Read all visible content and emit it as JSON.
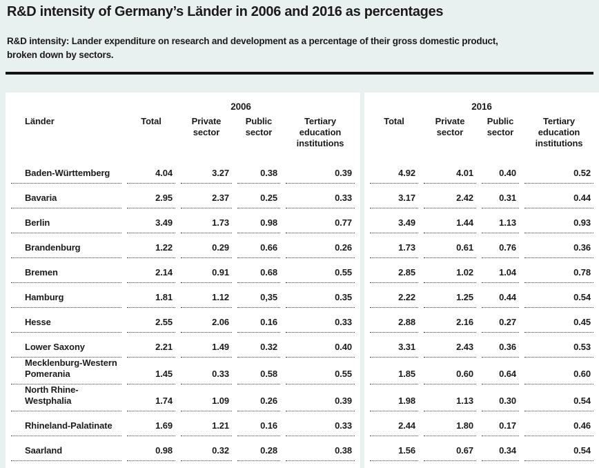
{
  "page": {
    "title": "R&D intensity of Germany’s Länder in 2006 and 2016 as percentages",
    "subtitle_lines": [
      "R&D intensity: Lander expenditure on research and development as a percentage of their gross domestic product,",
      "broken down by sectors."
    ],
    "colors": {
      "background": "#e9f1f0",
      "panel": "#ffffff",
      "text": "#1b1b1a",
      "rule": "#141414",
      "dotted_separator": "#3d3d3d"
    }
  },
  "table": {
    "row_header_label": "Länder",
    "year_groups": [
      {
        "year": "2006",
        "columns": [
          "Total",
          "Private sector",
          "Public sector",
          "Tertiary education institutions"
        ]
      },
      {
        "year": "2016",
        "columns": [
          "Total",
          "Private sector",
          "Public sector",
          "Tertiary education institutions"
        ]
      }
    ],
    "rows": [
      {
        "name": "Baden-Württemberg",
        "v06": [
          "4.04",
          "3.27",
          "0.38",
          "0.39"
        ],
        "v16": [
          "4.92",
          "4.01",
          "0.40",
          "0.52"
        ]
      },
      {
        "name": "Bavaria",
        "v06": [
          "2.95",
          "2.37",
          "0.25",
          "0.33"
        ],
        "v16": [
          "3.17",
          "2.42",
          "0.31",
          "0.44"
        ]
      },
      {
        "name": "Berlin",
        "v06": [
          "3.49",
          "1.73",
          "0.98",
          "0.77"
        ],
        "v16": [
          "3.49",
          "1.44",
          "1.13",
          "0.93"
        ]
      },
      {
        "name": "Brandenburg",
        "v06": [
          "1.22",
          "0.29",
          "0.66",
          "0.26"
        ],
        "v16": [
          "1.73",
          "0.61",
          "0.76",
          "0.36"
        ]
      },
      {
        "name": "Bremen",
        "v06": [
          "2.14",
          "0.91",
          "0.68",
          "0.55"
        ],
        "v16": [
          "2.85",
          "1.02",
          "1.04",
          "0.78"
        ]
      },
      {
        "name": "Hamburg",
        "v06": [
          "1.81",
          "1.12",
          "0,35",
          "0.35"
        ],
        "v16": [
          "2.22",
          "1.25",
          "0.44",
          "0.54"
        ]
      },
      {
        "name": "Hesse",
        "v06": [
          "2.55",
          "2.06",
          "0.16",
          "0.33"
        ],
        "v16": [
          "2.88",
          "2.16",
          "0.27",
          "0.45"
        ]
      },
      {
        "name": "Lower Saxony",
        "v06": [
          "2.21",
          "1.49",
          "0.32",
          "0.40"
        ],
        "v16": [
          "3.31",
          "2.43",
          "0.36",
          "0.53"
        ]
      },
      {
        "name": "Mecklenburg-Western Pomerania",
        "v06": [
          "1.45",
          "0.33",
          "0.58",
          "0.55"
        ],
        "v16": [
          "1.85",
          "0.60",
          "0.64",
          "0.60"
        ]
      },
      {
        "name": "North Rhine-Westphalia",
        "v06": [
          "1.74",
          "1.09",
          "0.26",
          "0.39"
        ],
        "v16": [
          "1.98",
          "1.13",
          "0.30",
          "0.54"
        ]
      },
      {
        "name": "Rhineland-Palatinate",
        "v06": [
          "1.69",
          "1.21",
          "0.16",
          "0.33"
        ],
        "v16": [
          "2.44",
          "1.80",
          "0.17",
          "0.46"
        ]
      },
      {
        "name": "Saarland",
        "v06": [
          "0.98",
          "0.32",
          "0.28",
          "0.38"
        ],
        "v16": [
          "1.56",
          "0.67",
          "0.34",
          "0.54"
        ]
      }
    ]
  }
}
